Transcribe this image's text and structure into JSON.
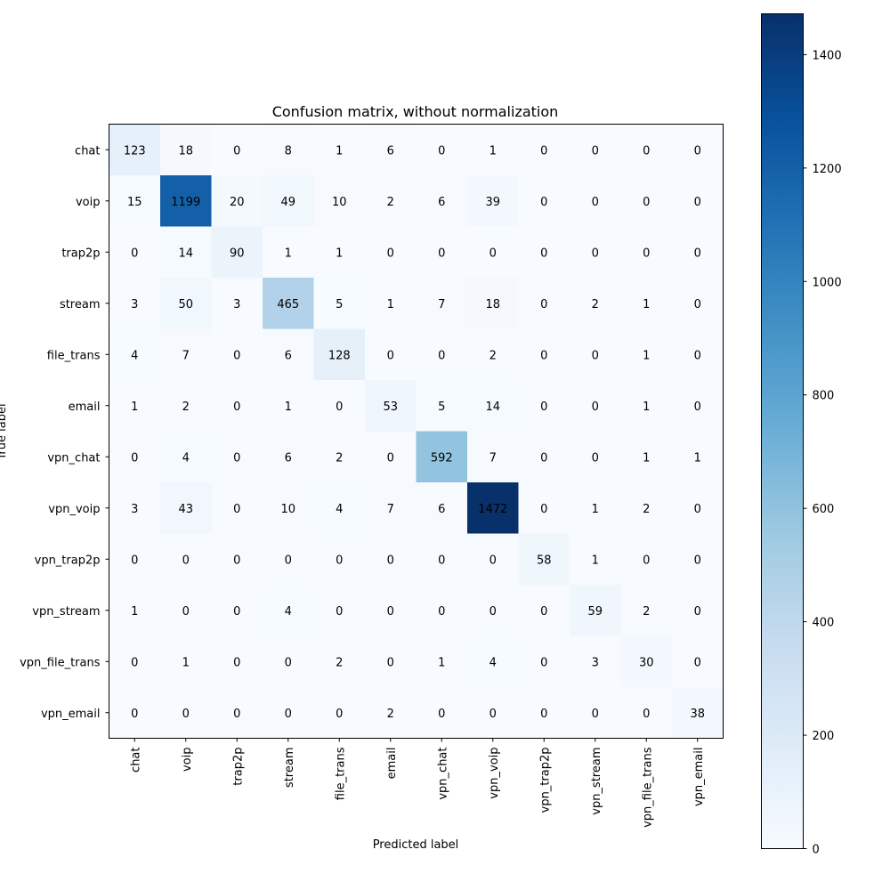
{
  "chart_data": {
    "type": "heatmap",
    "title": "Confusion matrix, without normalization",
    "xlabel": "Predicted label",
    "ylabel": "True label",
    "labels": [
      "chat",
      "voip",
      "trap2p",
      "stream",
      "file_trans",
      "email",
      "vpn_chat",
      "vpn_voip",
      "vpn_trap2p",
      "vpn_stream",
      "vpn_file_trans",
      "vpn_email"
    ],
    "matrix": [
      [
        123,
        18,
        0,
        8,
        1,
        6,
        0,
        1,
        0,
        0,
        0,
        0
      ],
      [
        15,
        1199,
        20,
        49,
        10,
        2,
        6,
        39,
        0,
        0,
        0,
        0
      ],
      [
        0,
        14,
        90,
        1,
        1,
        0,
        0,
        0,
        0,
        0,
        0,
        0
      ],
      [
        3,
        50,
        3,
        465,
        5,
        1,
        7,
        18,
        0,
        2,
        1,
        0
      ],
      [
        4,
        7,
        0,
        6,
        128,
        0,
        0,
        2,
        0,
        0,
        1,
        0
      ],
      [
        1,
        2,
        0,
        1,
        0,
        53,
        5,
        14,
        0,
        0,
        1,
        0
      ],
      [
        0,
        4,
        0,
        6,
        2,
        0,
        592,
        7,
        0,
        0,
        1,
        1
      ],
      [
        3,
        43,
        0,
        10,
        4,
        7,
        6,
        1472,
        0,
        1,
        2,
        0
      ],
      [
        0,
        0,
        0,
        0,
        0,
        0,
        0,
        0,
        58,
        1,
        0,
        0
      ],
      [
        1,
        0,
        0,
        4,
        0,
        0,
        0,
        0,
        0,
        59,
        2,
        0
      ],
      [
        0,
        1,
        0,
        0,
        2,
        0,
        1,
        4,
        0,
        3,
        30,
        0
      ],
      [
        0,
        0,
        0,
        0,
        0,
        2,
        0,
        0,
        0,
        0,
        0,
        38
      ]
    ],
    "colormap": "Blues",
    "vmin": 0,
    "vmax": 1472,
    "colorbar_ticks": [
      0,
      200,
      400,
      600,
      800,
      1000,
      1200,
      1400
    ]
  }
}
